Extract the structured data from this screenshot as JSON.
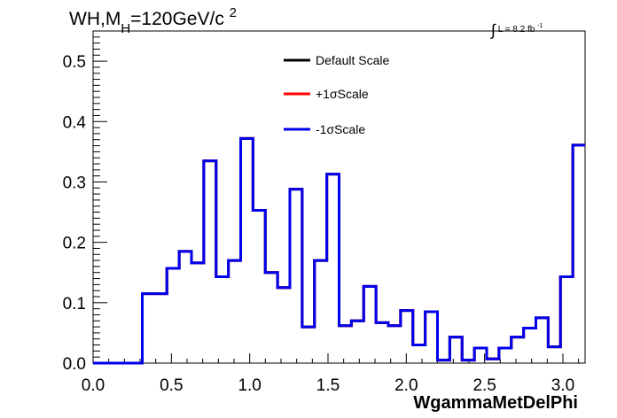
{
  "title": {
    "prefix": "WH,M",
    "subscript": "H",
    "middle": "=120GeV/c",
    "superscript": "2"
  },
  "luminosity": {
    "integral": "∫",
    "text": "L = 8.2 fb",
    "superscript": "-1"
  },
  "chart_data": {
    "type": "step",
    "xlabel": "WgammaMetDelPhi",
    "ylabel": "",
    "xlim": [
      0.0,
      3.1416
    ],
    "ylim": [
      0.0,
      0.55
    ],
    "xticks": [
      "0.0",
      "0.5",
      "1.0",
      "1.5",
      "2.0",
      "2.5",
      "3.0"
    ],
    "yticks": [
      "0.0",
      "0.1",
      "0.2",
      "0.3",
      "0.4",
      "0.5"
    ],
    "bin_edges": [
      0.0,
      0.0785,
      0.1571,
      0.2356,
      0.3142,
      0.3927,
      0.4712,
      0.5498,
      0.6283,
      0.7069,
      0.7854,
      0.8639,
      0.9425,
      1.021,
      1.0996,
      1.1781,
      1.2566,
      1.3352,
      1.4137,
      1.4923,
      1.5708,
      1.6493,
      1.7279,
      1.8064,
      1.885,
      1.9635,
      2.042,
      2.1206,
      2.1991,
      2.2777,
      2.3562,
      2.4347,
      2.5133,
      2.5918,
      2.6704,
      2.7489,
      2.8274,
      2.906,
      2.9845,
      3.0631,
      3.1416
    ],
    "values": [
      0.0,
      0.0,
      0.0,
      0.0,
      0.115,
      0.115,
      0.157,
      0.185,
      0.166,
      0.335,
      0.143,
      0.17,
      0.372,
      0.253,
      0.15,
      0.125,
      0.288,
      0.06,
      0.17,
      0.313,
      0.062,
      0.07,
      0.127,
      0.067,
      0.062,
      0.087,
      0.03,
      0.085,
      0.005,
      0.043,
      0.005,
      0.025,
      0.007,
      0.025,
      0.043,
      0.058,
      0.075,
      0.027,
      0.143,
      0.361
    ],
    "series": [
      {
        "name": "Default Scale",
        "color": "#000000"
      },
      {
        "name": "+1σScale",
        "color": "#ff0000"
      },
      {
        "name": "-1σScale",
        "color": "#0000ee"
      }
    ],
    "legend_position": "top-center",
    "grid": false
  }
}
